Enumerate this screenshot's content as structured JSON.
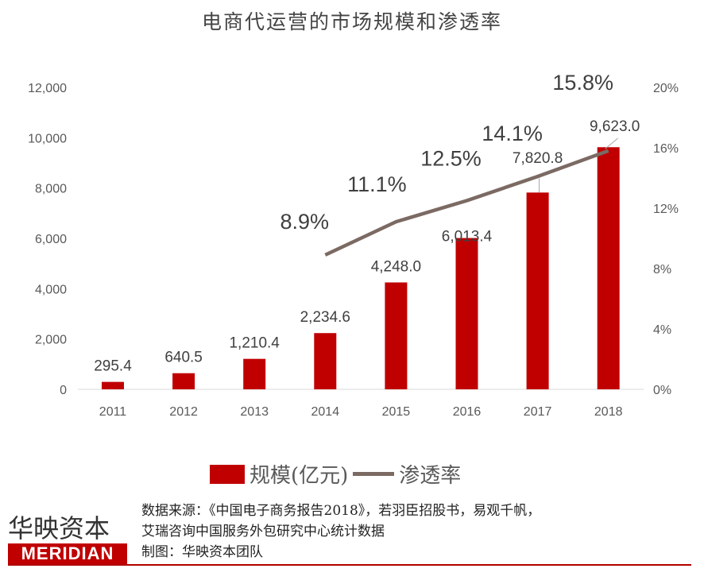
{
  "title": "电商代运营的市场规模和渗透率",
  "chart_data": {
    "type": "bar+line",
    "title": "电商代运营的市场规模和渗透率",
    "categories": [
      "2011",
      "2012",
      "2013",
      "2014",
      "2015",
      "2016",
      "2017",
      "2018"
    ],
    "series": [
      {
        "name": "规模(亿元)",
        "type": "bar",
        "axis": "left",
        "color": "#c00000",
        "values": [
          295.4,
          640.5,
          1210.4,
          2234.6,
          4248.0,
          6013.4,
          7820.8,
          9623.0
        ],
        "labels": [
          "295.4",
          "640.5",
          "1,210.4",
          "2,234.6",
          "4,248.0",
          "6,013.4",
          "7,820.8",
          "9,623.0"
        ]
      },
      {
        "name": "渗透率",
        "type": "line",
        "axis": "right",
        "color": "#7b6a63",
        "values": [
          null,
          null,
          null,
          8.9,
          11.1,
          12.5,
          14.1,
          15.8
        ],
        "labels": [
          "",
          "",
          "",
          "8.9%",
          "11.1%",
          "12.5%",
          "14.1%",
          "15.8%"
        ]
      }
    ],
    "ylim_left": [
      0,
      12000
    ],
    "yticks_left": [
      "0",
      "2,000",
      "4,000",
      "6,000",
      "8,000",
      "10,000",
      "12,000"
    ],
    "ylim_right": [
      0,
      20
    ],
    "yticks_right": [
      "0%",
      "4%",
      "8%",
      "12%",
      "16%",
      "20%"
    ],
    "grid": false,
    "legend": "bottom"
  },
  "legend": {
    "bar": "规模(亿元)",
    "line": "渗透率"
  },
  "footer": {
    "brand_cn": "华映资本",
    "brand_en": "MERIDIAN",
    "source_line1": "数据来源：《中国电子商务报告2018》，若羽臣招股书，易观千帆，",
    "source_line2": "艾瑞咨询中国服务外包研究中心统计数据",
    "credit": "制图：华映资本团队"
  }
}
